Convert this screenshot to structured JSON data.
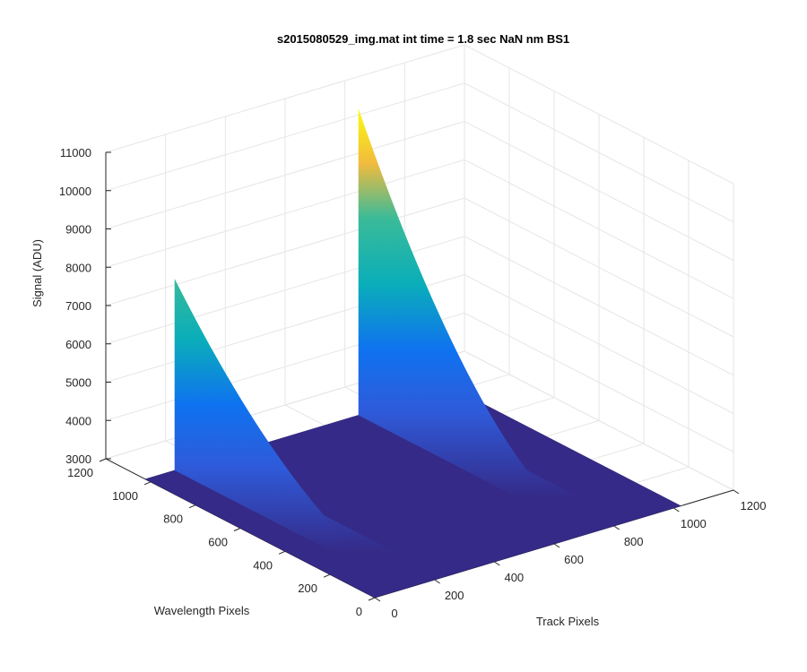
{
  "chart_data": {
    "type": "surface",
    "title": "s2015080529_img.mat int time = 1.8 sec  NaN nm BS1",
    "xlabel": "Track Pixels",
    "ylabel": "Wavelength Pixels",
    "zlabel": "Signal (ADU)",
    "xlim": [
      0,
      1200
    ],
    "ylim": [
      0,
      1200
    ],
    "zlim": [
      3000,
      11000
    ],
    "x_ticks": [
      0,
      200,
      400,
      600,
      800,
      1000,
      1200
    ],
    "y_ticks": [
      0,
      200,
      400,
      600,
      800,
      1000,
      1200
    ],
    "z_ticks": [
      3000,
      4000,
      5000,
      6000,
      7000,
      8000,
      9000,
      10000,
      11000
    ],
    "grid": true,
    "colormap": "parula",
    "surface_extent": {
      "x": [
        0,
        1024
      ],
      "y": [
        0,
        1024
      ]
    },
    "baseline_signal": 3000,
    "peaks": [
      {
        "track_pixel": 100,
        "peak_signal": 8000,
        "peak_wavelength_pixel": 1024,
        "low_wavelength_signal": 3100
      },
      {
        "track_pixel": 715,
        "peak_signal": 11000,
        "peak_wavelength_pixel": 1024,
        "low_wavelength_signal": 3100
      }
    ]
  }
}
